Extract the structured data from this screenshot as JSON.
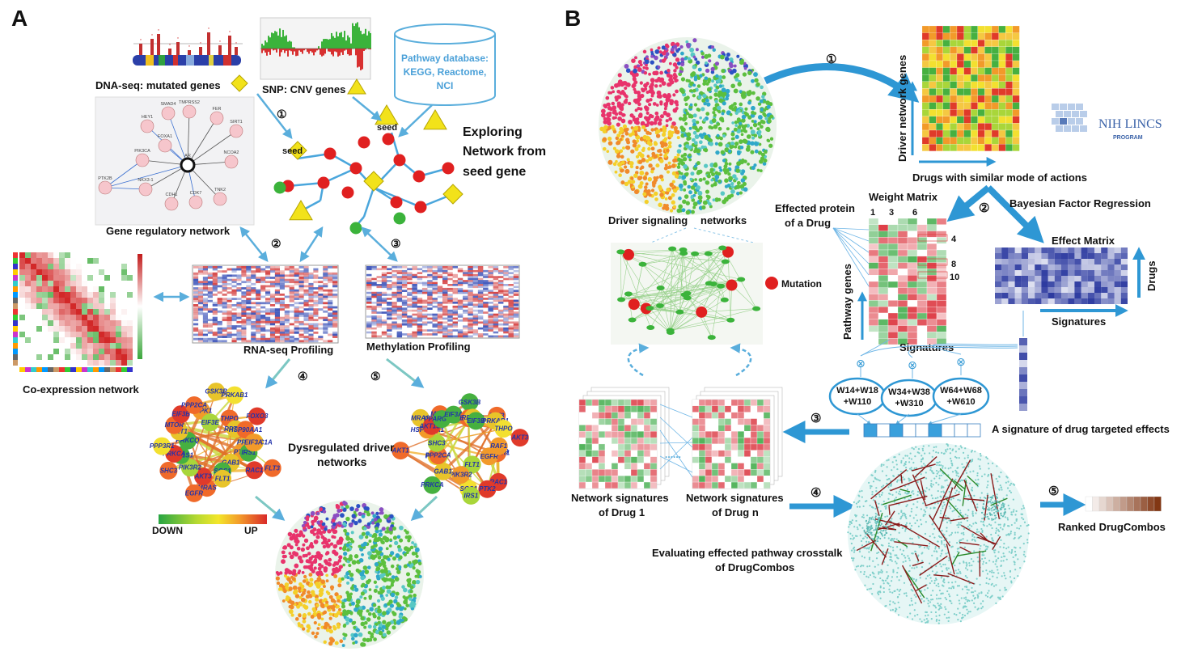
{
  "panels": {
    "a": "A",
    "b": "B"
  },
  "a": {
    "dna_seq": "DNA-seq: mutated genes",
    "snp": "SNP: CNV genes",
    "pathway_db": [
      "Pathway database:",
      "KEGG, Reactome,",
      "NCI"
    ],
    "exploring": [
      "Exploring",
      "Network from",
      "seed gene"
    ],
    "seed": "seed",
    "gene_reg": "Gene regulatory network",
    "coexp": "Co-expression network",
    "rnaseq": "RNA-seq Profiling",
    "methyl": "Methylation Profiling",
    "dysreg": [
      "Dysregulated  driver",
      "networks"
    ],
    "down": "DOWN",
    "up": "UP",
    "grn_nodes": [
      "SMAD4",
      "TMPRSS2",
      "FER",
      "HEY1",
      "SIRT1",
      "PIK3CA",
      "FOXA1",
      "AR",
      "NCOA2",
      "PTK2B",
      "NKX3-1",
      "CDH1",
      "CDK7",
      "TNK2"
    ],
    "genes_left": [
      "PTK2",
      "IRS1",
      "FLT3",
      "RAC1",
      "GAB1",
      "SOS1",
      "FLT1",
      "MRAS",
      "AKT3",
      "EGFR",
      "PIK3R2",
      "SHC3",
      "AKT1S1",
      "PRKCA",
      "PPP3R1",
      "PRKCQ",
      "AKT1",
      "MTOR",
      "EIF3B",
      "PDPK1",
      "PPP2CA",
      "EIF3E",
      "GSK3B",
      "THPO",
      "PRKAB1",
      "RPTOR",
      "FOXO3",
      "HSP90AA1",
      "PPARGC1A",
      "EIF3A"
    ],
    "genes_right": [
      "CASP9",
      "PPP3R1",
      "EGFR",
      "RAC1",
      "PTK2",
      "FLT1",
      "SOS1",
      "IRS1",
      "PIK3R2",
      "GAB1",
      "PRKCA",
      "PDPK1",
      "PPP2CA",
      "AKT1",
      "SHC3",
      "HSP90AA1",
      "MRAS",
      "AKT1S1",
      "MTOR",
      "PPARGC1A",
      "EIF3A",
      "GSK3B",
      "EIF3E",
      "RPTOR",
      "EIF3B",
      "FLT3",
      "PRKAB1",
      "THPO",
      "AKT3",
      "RAF1"
    ],
    "step_labels": [
      "①",
      "②",
      "③",
      "④",
      "⑤"
    ]
  },
  "b": {
    "step_labels": [
      "①",
      "②",
      "③",
      "④",
      "⑤"
    ],
    "driver_net": "Driver signaling",
    "driver_net2": "networks",
    "driver_genes": "Driver network genes",
    "drugs_similar": "Drugs with similar mode of actions",
    "nih": "NIH LINCS",
    "nih_sub": "PROGRAM",
    "bayes": "Bayesian Factor Regression",
    "weight_matrix": "Weight Matrix",
    "wm_cols": [
      "1",
      "3",
      "6"
    ],
    "wm_rows": [
      "4",
      "8",
      "10"
    ],
    "effected": [
      "Effected protein",
      "of  a Drug"
    ],
    "pathway_genes": "Pathway genes",
    "signatures": "Signatures",
    "effect_matrix": "Effect Matrix",
    "drugs": "Drugs",
    "signatures2": "Signatures",
    "mutation": "Mutation",
    "w1": [
      "W14+W18",
      "+W110"
    ],
    "w2": [
      "W34+W38",
      "+W310"
    ],
    "w3": [
      "W64+W68",
      "+W610"
    ],
    "sig_drug": "A signature of drug targeted effects",
    "net_sig1": [
      "Network signatures",
      "of Drug 1"
    ],
    "net_sign": [
      "Network signatures",
      "of Drug n"
    ],
    "ranked": "Ranked DrugCombos",
    "evaluating": [
      "Evaluating effected pathway crosstalk",
      "of DrugCombos"
    ],
    "otimes": "⊗"
  },
  "colors": {
    "arrow": "#5aaedc",
    "red_node": "#e02020",
    "green_node": "#3bb33b",
    "yellow_node": "#f2e21a",
    "heat_red": "#d83a36",
    "heat_blue": "#2b3fa8",
    "effect_blue": "#2c3aa0",
    "teal": "#7fd0cc"
  }
}
